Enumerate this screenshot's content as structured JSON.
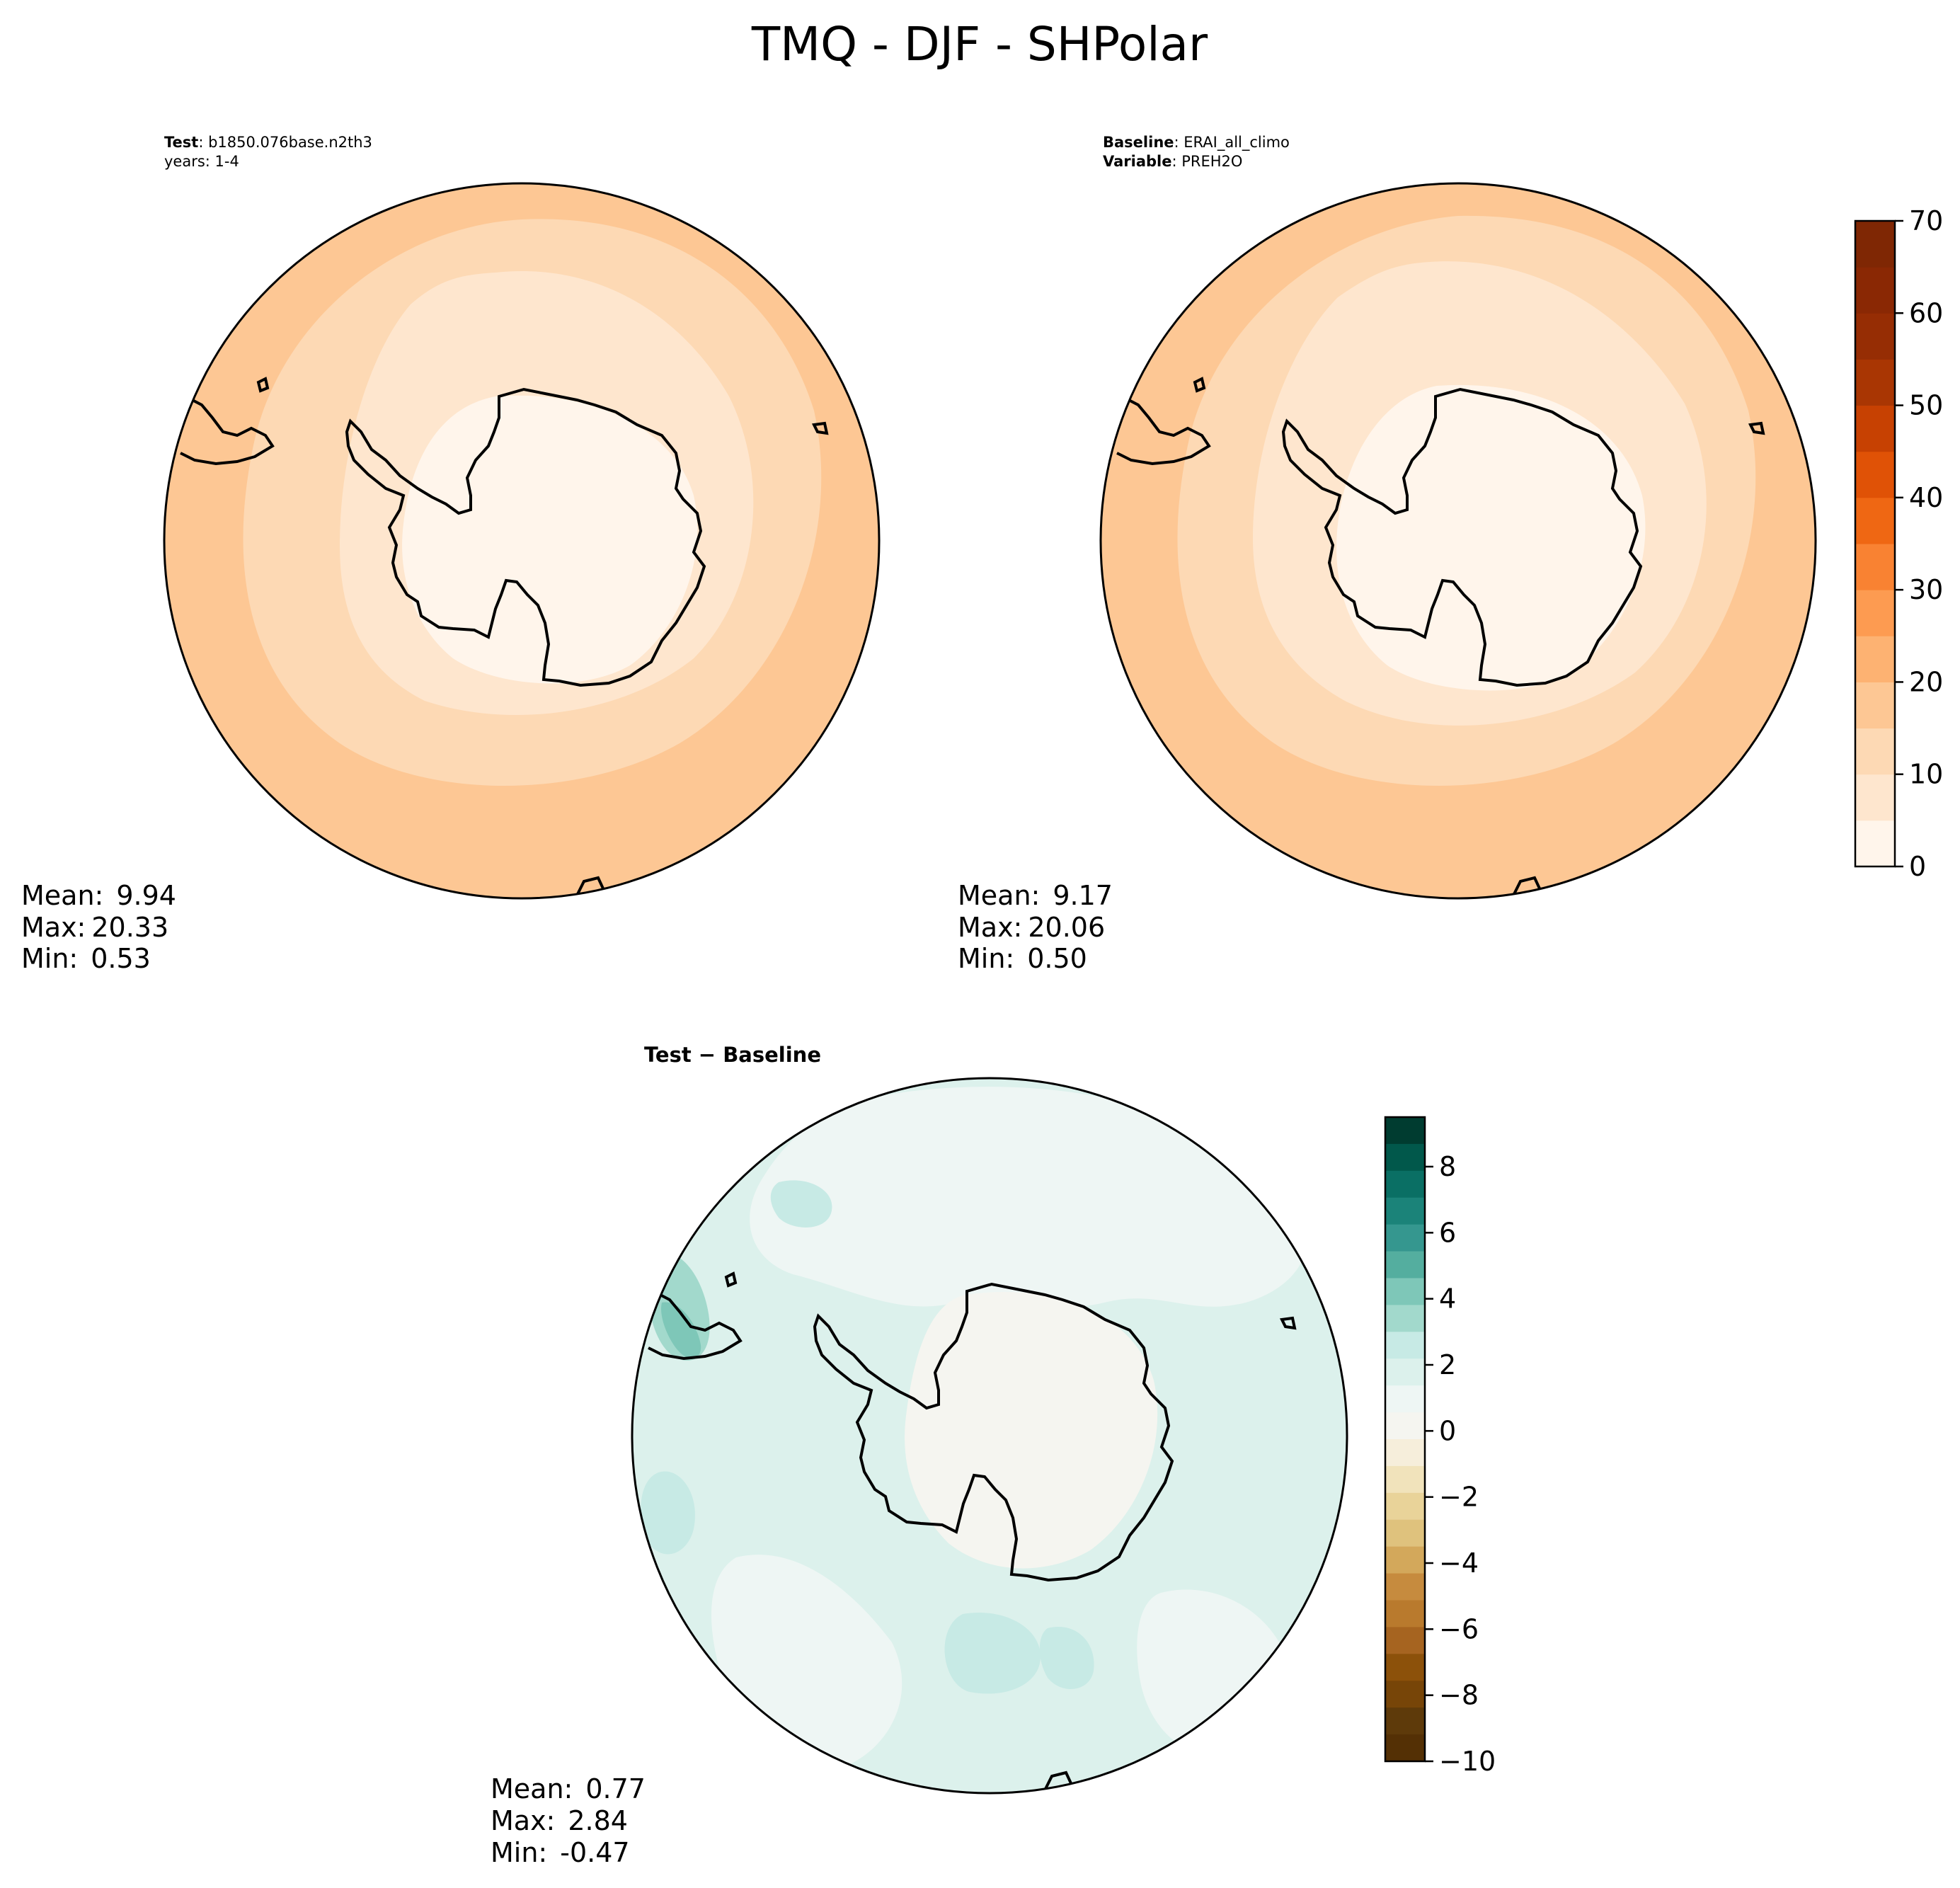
{
  "figure": {
    "title": "TMQ - DJF - SHPolar"
  },
  "panels": {
    "test": {
      "header_key": "Test",
      "header_value": ": b1850.076base.n2th3",
      "header_line2": "years: 1-4",
      "stats": {
        "mean_label": "Mean:",
        "mean_value": "9.94",
        "max_label": "Max:",
        "max_value": "20.33",
        "min_label": "Min:",
        "min_value": "0.53"
      }
    },
    "baseline": {
      "header_key": "Baseline",
      "header_value": ": ERAI_all_climo",
      "header_key2": "Variable",
      "header_value2": ": PREH2O",
      "stats": {
        "mean_label": "Mean:",
        "mean_value": "9.17",
        "max_label": "Max:",
        "max_value": "20.06",
        "min_label": "Min:",
        "min_value": "0.50"
      }
    },
    "diff": {
      "title": "Test − Baseline",
      "stats": {
        "mean_label": "Mean:",
        "mean_value": "0.77",
        "max_label": "Max:",
        "max_value": "2.84",
        "min_label": "Min:",
        "min_value": "-0.47"
      }
    }
  },
  "chart_data": [
    {
      "type": "heatmap",
      "projection": "south-polar-stereographic",
      "title": "",
      "colorbar": {
        "ticks": [
          "0",
          "10",
          "20",
          "30",
          "40",
          "50",
          "60",
          "70"
        ],
        "range": [
          0,
          70
        ],
        "levels": [
          0,
          5,
          10,
          15,
          20,
          25,
          30,
          35,
          40,
          45,
          50,
          55,
          60,
          65,
          70
        ],
        "colors": [
          "#fff5eb",
          "#fee6ce",
          "#fdd9b4",
          "#fdc794",
          "#fdb272",
          "#fd9b51",
          "#f98232",
          "#ef6713",
          "#e05206",
          "#c74102",
          "#a93603",
          "#962d04",
          "#8a2804",
          "#7f2704"
        ]
      },
      "contour_bands": [
        {
          "label": "0-5",
          "color": "#fff5eb"
        },
        {
          "label": "5-10",
          "color": "#fee6ce"
        },
        {
          "label": "10-15",
          "color": "#fdd9b4"
        },
        {
          "label": "15-20",
          "color": "#fdc794"
        }
      ]
    },
    {
      "type": "heatmap",
      "projection": "south-polar-stereographic",
      "title": "",
      "colorbar": {
        "ticks": [
          "8",
          "6",
          "4",
          "2",
          "0",
          "−2",
          "−4",
          "−6",
          "−8",
          "−10"
        ],
        "range": [
          -10,
          9.5
        ],
        "colors_top_to_bottom": [
          "#003c30",
          "#01584b",
          "#0a6f64",
          "#1b8379",
          "#35978f",
          "#54ae9f",
          "#7ec7b8",
          "#a2d9cc",
          "#c7eae5",
          "#dcf1ec",
          "#eef6f4",
          "#f5f5f0",
          "#f6eedb",
          "#f1e3bb",
          "#e9d399",
          "#dfc27d",
          "#d3a85b",
          "#c68b3e",
          "#b97a2d",
          "#a66420",
          "#8c510a",
          "#774508",
          "#5e3a0a",
          "#543005"
        ]
      }
    }
  ]
}
